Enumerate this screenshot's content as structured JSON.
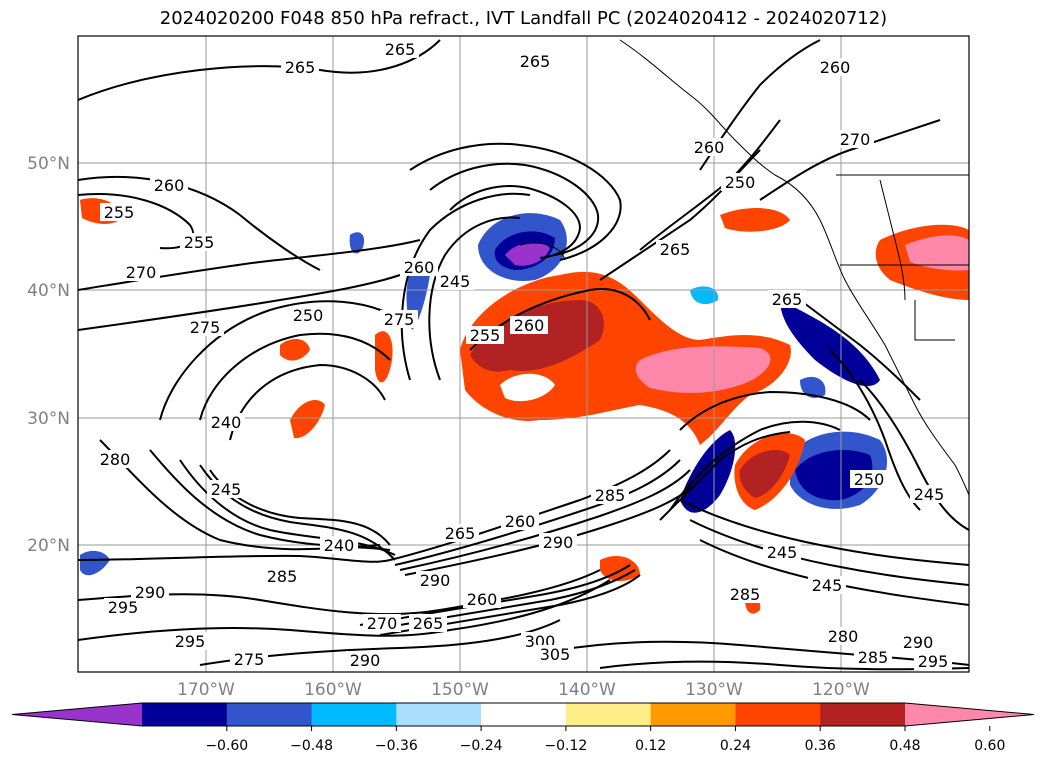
{
  "title": "2024020200 F048 850 hPa refract., IVT Landfall PC (2024020412 - 2024020712)",
  "lat_labels": [
    "50°N",
    "40°N",
    "30°N",
    "20°N"
  ],
  "lon_labels": [
    "170°W",
    "160°W",
    "150°W",
    "140°W",
    "130°W",
    "120°W"
  ],
  "contour_labels": [
    "265",
    "265",
    "265",
    "260",
    "260",
    "260",
    "255",
    "255",
    "270",
    "275",
    "250",
    "245",
    "240",
    "245",
    "280",
    "260",
    "255",
    "260",
    "250",
    "265",
    "265",
    "285",
    "290",
    "295",
    "295",
    "290",
    "275",
    "270",
    "265",
    "260",
    "300",
    "305",
    "290",
    "290",
    "285",
    "245",
    "245",
    "250",
    "245",
    "280",
    "285",
    "290",
    "295",
    "285",
    "260",
    "265",
    "270",
    "275",
    "240"
  ],
  "colorbar": {
    "ticks": [
      "−0.60",
      "−0.48",
      "−0.36",
      "−0.24",
      "−0.12",
      "0.12",
      "0.24",
      "0.36",
      "0.48",
      "0.60"
    ],
    "colors": [
      "#9933cc",
      "#000099",
      "#3355cc",
      "#00bbff",
      "#aaddff",
      "#ffffff",
      "#ffee88",
      "#ff9900",
      "#ff4400",
      "#b22222",
      "#ff88aa"
    ]
  }
}
